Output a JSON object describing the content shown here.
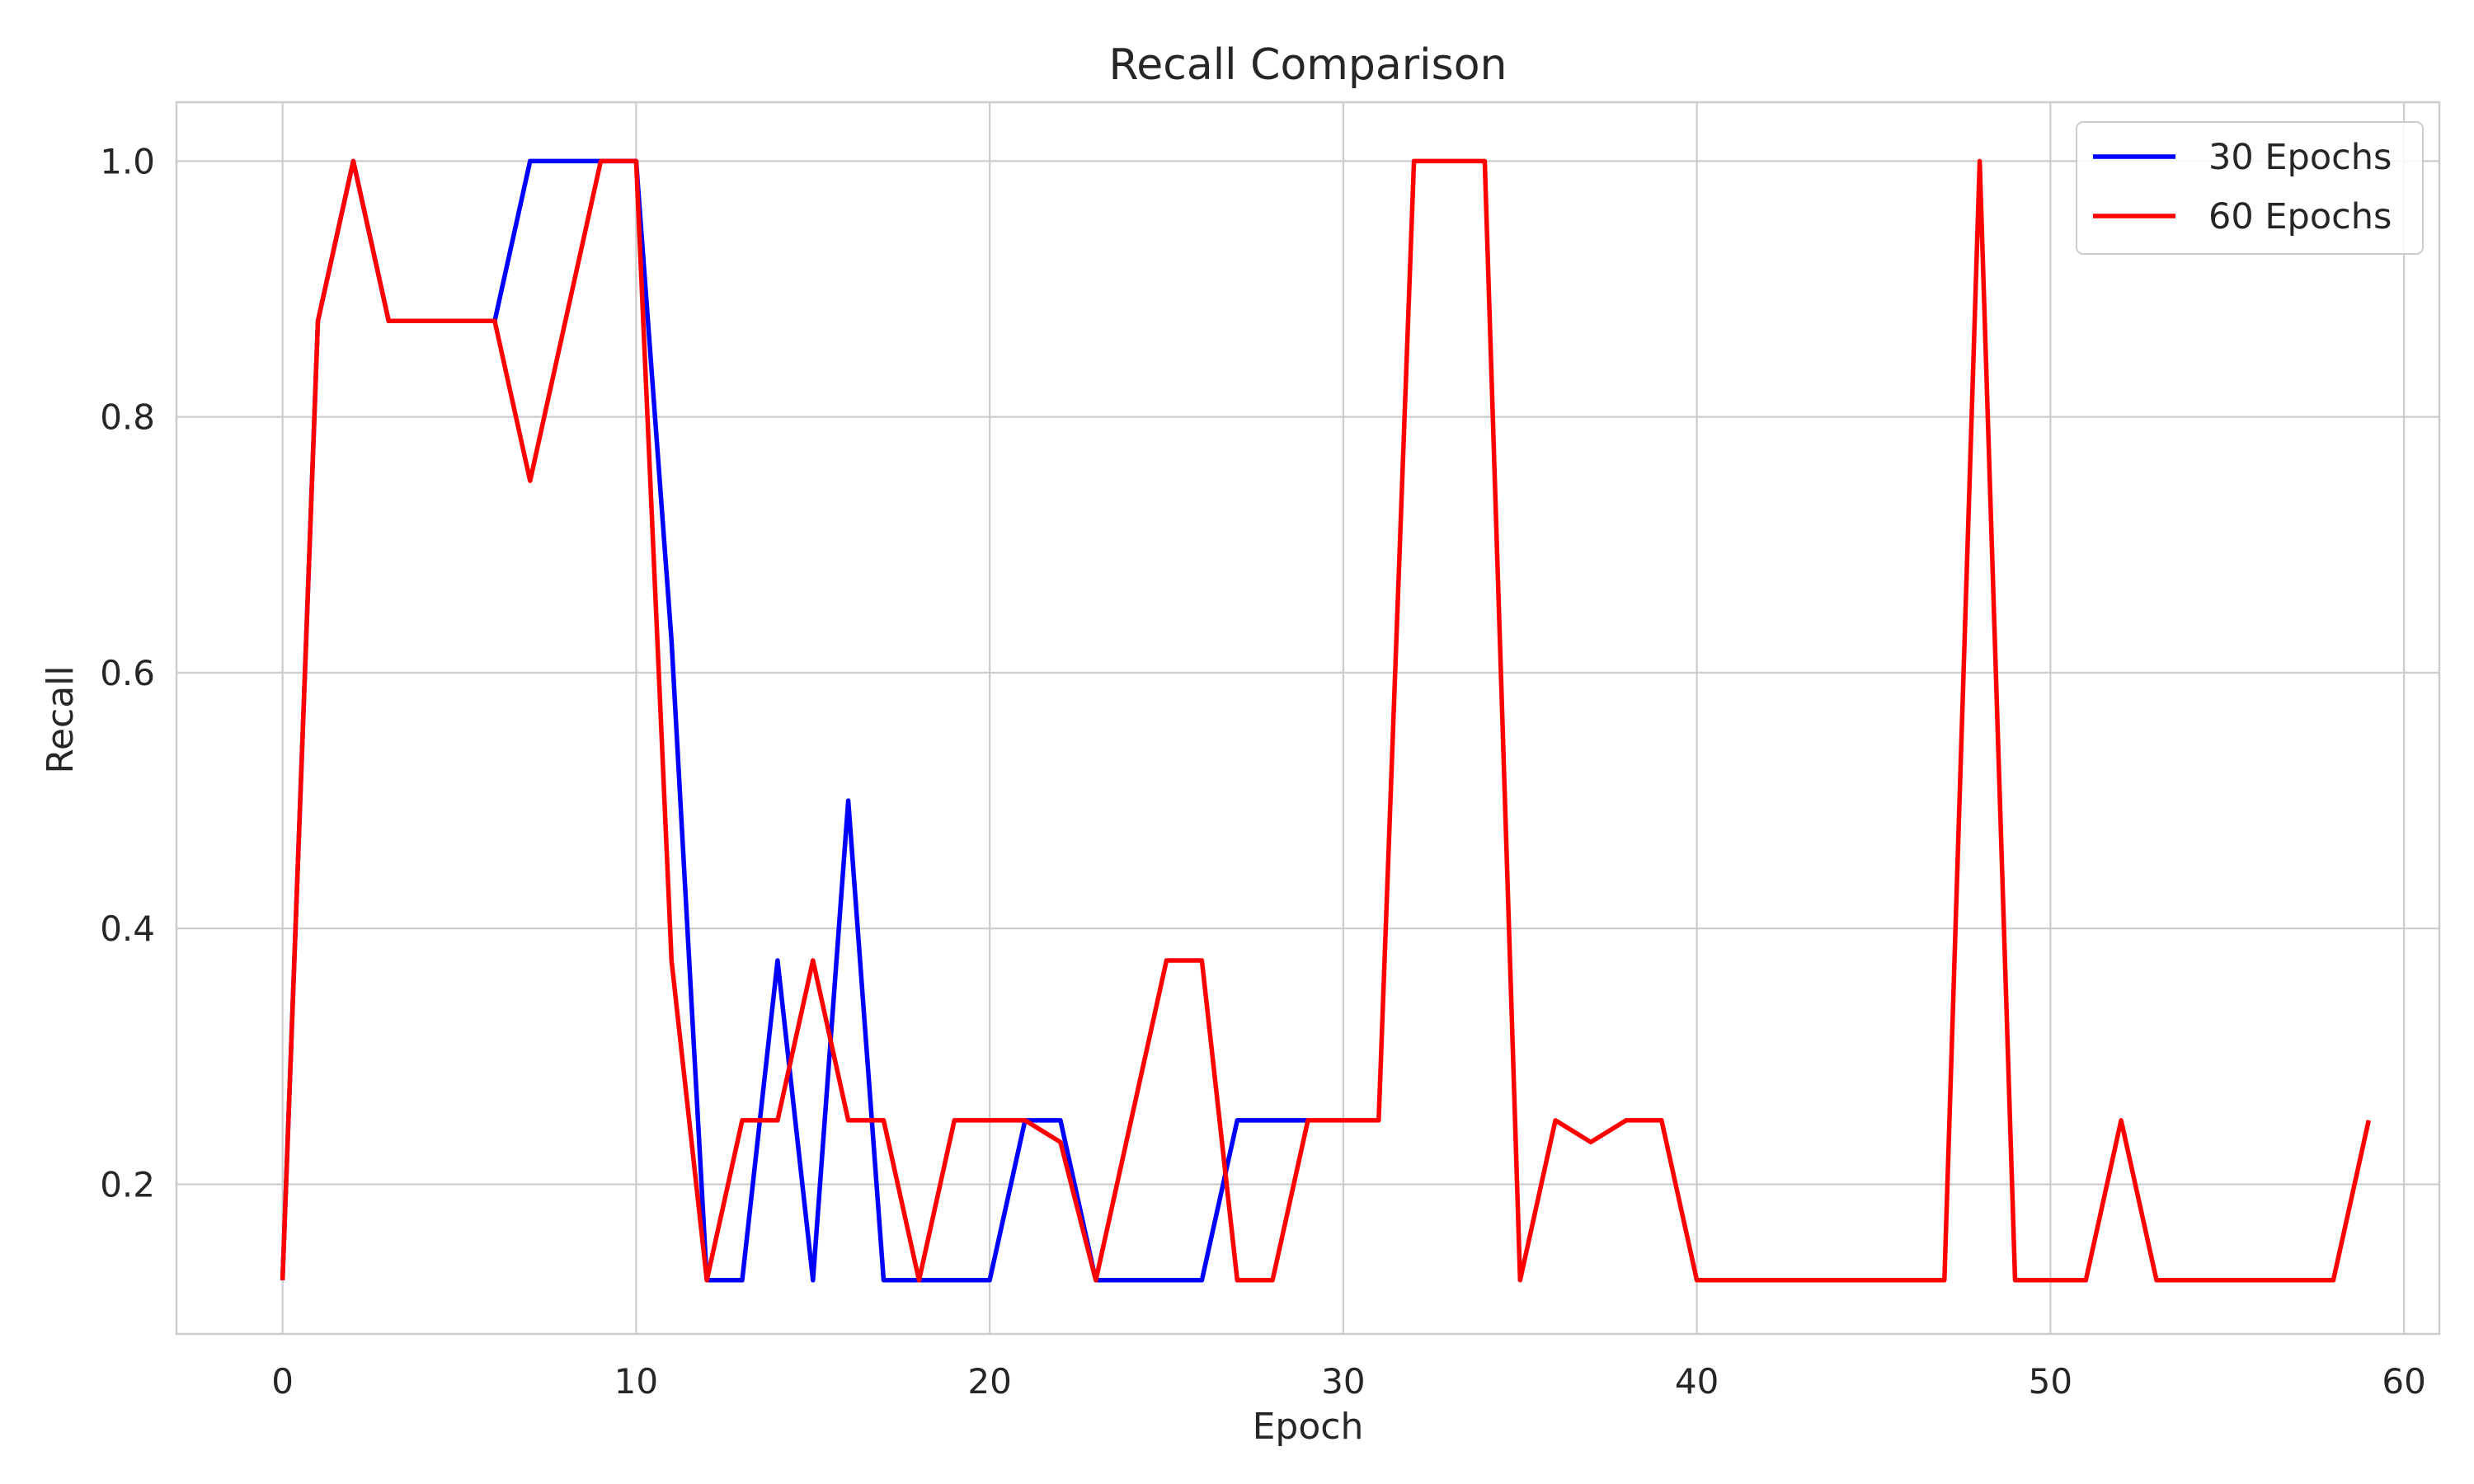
{
  "chart_data": {
    "type": "line",
    "title": "Recall Comparison",
    "xlabel": "Epoch",
    "ylabel": "Recall",
    "xlim": [
      -3,
      61
    ],
    "ylim": [
      0.083,
      1.046
    ],
    "xticks": [
      0,
      10,
      20,
      30,
      40,
      50,
      60
    ],
    "yticks": [
      0.2,
      0.4,
      0.6,
      0.8,
      1.0
    ],
    "ytick_labels": [
      "0.2",
      "0.4",
      "0.6",
      "0.8",
      "1.0"
    ],
    "grid": true,
    "legend_position": "top-right",
    "series": [
      {
        "name": "30 Epochs",
        "color": "#0000ff",
        "x": [
          0,
          1,
          2,
          3,
          4,
          5,
          6,
          7,
          8,
          9,
          10,
          11,
          12,
          13,
          14,
          15,
          16,
          17,
          18,
          19,
          20,
          21,
          22,
          23,
          24,
          25,
          26,
          27,
          28,
          29
        ],
        "values": [
          0.125,
          0.875,
          1.0,
          0.875,
          0.875,
          0.875,
          0.875,
          1.0,
          1.0,
          1.0,
          1.0,
          0.625,
          0.125,
          0.125,
          0.375,
          0.125,
          0.5,
          0.125,
          0.125,
          0.125,
          0.125,
          0.25,
          0.25,
          0.125,
          0.125,
          0.125,
          0.125,
          0.25,
          0.25,
          0.25
        ]
      },
      {
        "name": "60 Epochs",
        "color": "#ff0000",
        "x": [
          0,
          1,
          2,
          3,
          4,
          5,
          6,
          7,
          8,
          9,
          10,
          11,
          12,
          13,
          14,
          15,
          16,
          17,
          18,
          19,
          20,
          21,
          22,
          23,
          24,
          25,
          26,
          27,
          28,
          29,
          30,
          31,
          32,
          33,
          34,
          35,
          36,
          37,
          38,
          39,
          40,
          41,
          42,
          43,
          44,
          45,
          46,
          47,
          48,
          49,
          50,
          51,
          52,
          53,
          54,
          55,
          56,
          57,
          58,
          59
        ],
        "values": [
          0.125,
          0.875,
          1.0,
          0.875,
          0.875,
          0.875,
          0.875,
          0.75,
          0.875,
          1.0,
          1.0,
          0.375,
          0.125,
          0.25,
          0.25,
          0.375,
          0.25,
          0.25,
          0.125,
          0.25,
          0.25,
          0.25,
          0.233,
          0.125,
          0.25,
          0.375,
          0.375,
          0.125,
          0.125,
          0.25,
          0.25,
          0.25,
          1.0,
          1.0,
          1.0,
          0.125,
          0.25,
          0.233,
          0.25,
          0.25,
          0.125,
          0.125,
          0.125,
          0.125,
          0.125,
          0.125,
          0.125,
          0.125,
          1.0,
          0.125,
          0.125,
          0.125,
          0.25,
          0.125,
          0.125,
          0.125,
          0.125,
          0.125,
          0.125,
          0.25
        ]
      }
    ]
  }
}
